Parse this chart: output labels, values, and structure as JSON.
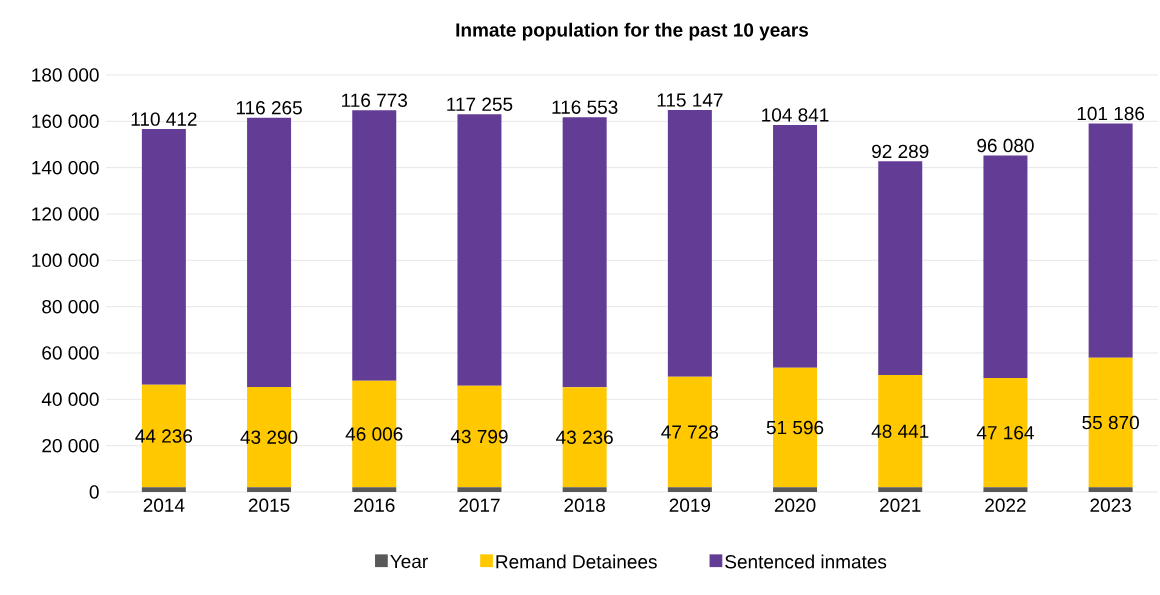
{
  "chart_data": {
    "type": "bar",
    "title": "Inmate population for the past 10 years",
    "categories": [
      "2014",
      "2015",
      "2016",
      "2017",
      "2018",
      "2019",
      "2020",
      "2021",
      "2022",
      "2023"
    ],
    "stacked": true,
    "series": [
      {
        "name": "Year",
        "color": "#595959",
        "values": [
          2014,
          2015,
          2016,
          2017,
          2018,
          2019,
          2020,
          2021,
          2022,
          2023
        ]
      },
      {
        "name": "Remand Detainees",
        "color": "#ffc800",
        "values": [
          44236,
          43290,
          46006,
          43799,
          43236,
          47728,
          51596,
          48441,
          47164,
          55870
        ],
        "value_labels": [
          "44 236",
          "43 290",
          "46 006",
          "43 799",
          "43 236",
          "47 728",
          "51 596",
          "48 441",
          "47 164",
          "55 870"
        ]
      },
      {
        "name": "Sentenced inmates",
        "color": "#633c96",
        "values": [
          110412,
          116265,
          116773,
          117255,
          116553,
          115147,
          104841,
          92289,
          96080,
          101186
        ],
        "value_labels": [
          "110 412",
          "116 265",
          "116 773",
          "117 255",
          "116 553",
          "115 147",
          "104 841",
          "92 289",
          "96 080",
          "101 186"
        ]
      }
    ],
    "ylim": [
      0,
      180000
    ],
    "yticks": [
      0,
      {
        "value": 20000,
        "label": "20 000"
      },
      {
        "value": 40000,
        "label": "40 000"
      },
      {
        "value": 60000,
        "label": "60 000"
      },
      {
        "value": 80000,
        "label": "80 000"
      },
      {
        "value": 100000,
        "label": "100 000"
      },
      {
        "value": 120000,
        "label": "120 000"
      },
      {
        "value": 140000,
        "label": "140 000"
      },
      {
        "value": 160000,
        "label": "160 000"
      },
      {
        "value": 180000,
        "label": "180 000"
      }
    ],
    "grid": "y",
    "legend": "bottom"
  }
}
